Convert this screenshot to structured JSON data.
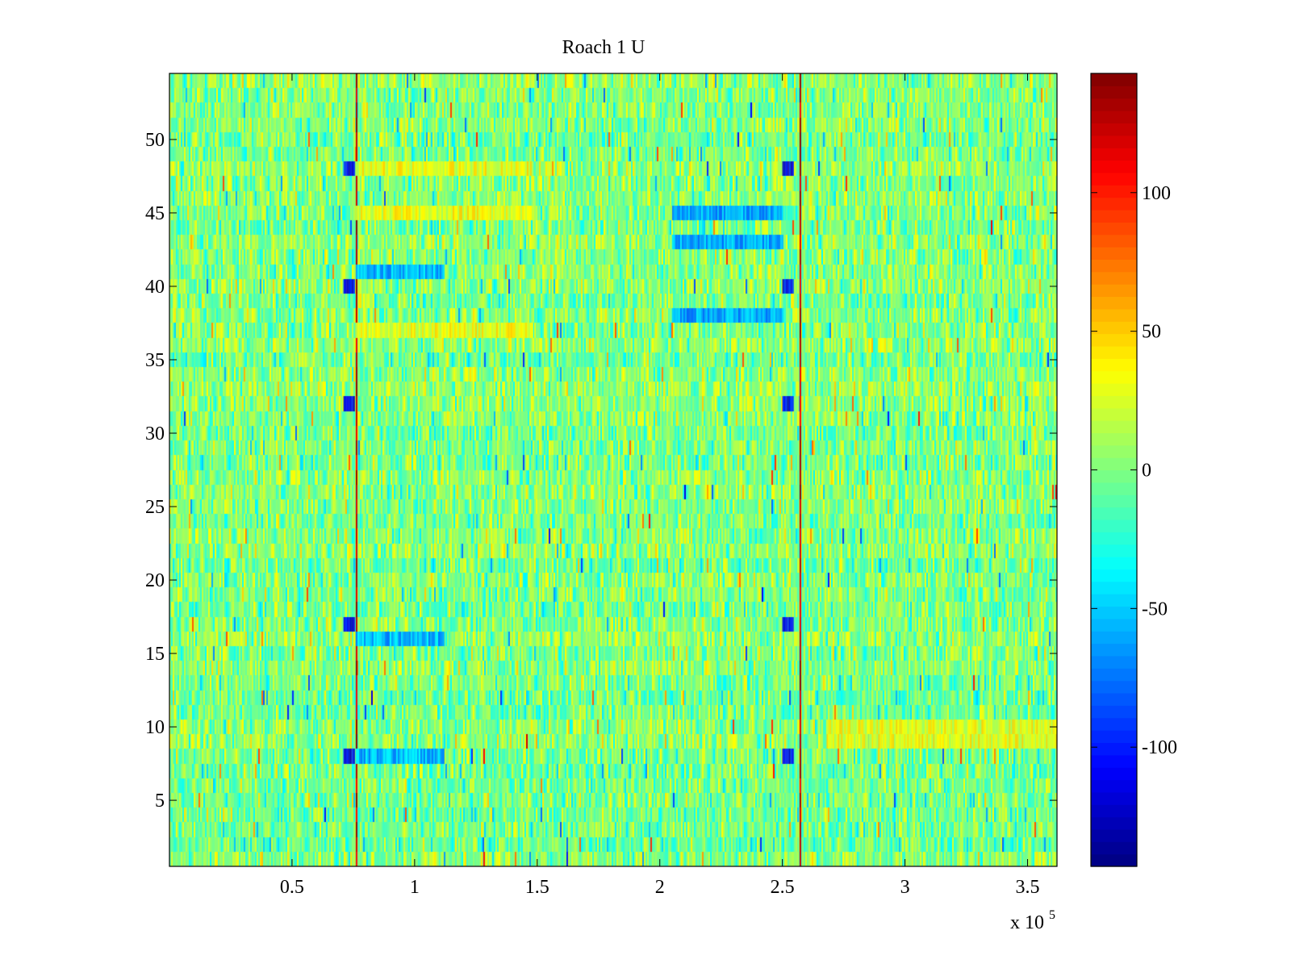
{
  "chart_data": {
    "type": "heatmap",
    "title": "Roach 1 U",
    "xlabel": "",
    "ylabel": "",
    "x_range": [
      0,
      362000
    ],
    "y_range": [
      0.5,
      54.5
    ],
    "rows": 54,
    "x_exponent_label": "x 10",
    "x_exponent_power": "5",
    "x_ticks": [
      {
        "value": 50000,
        "label": "0.5"
      },
      {
        "value": 100000,
        "label": "1"
      },
      {
        "value": 150000,
        "label": "1.5"
      },
      {
        "value": 200000,
        "label": "2"
      },
      {
        "value": 250000,
        "label": "2.5"
      },
      {
        "value": 300000,
        "label": "3"
      },
      {
        "value": 350000,
        "label": "3.5"
      }
    ],
    "y_ticks": [
      {
        "value": 5,
        "label": "5"
      },
      {
        "value": 10,
        "label": "10"
      },
      {
        "value": 15,
        "label": "15"
      },
      {
        "value": 20,
        "label": "20"
      },
      {
        "value": 25,
        "label": "25"
      },
      {
        "value": 30,
        "label": "30"
      },
      {
        "value": 35,
        "label": "35"
      },
      {
        "value": 40,
        "label": "40"
      },
      {
        "value": 45,
        "label": "45"
      },
      {
        "value": 50,
        "label": "50"
      }
    ],
    "colorbar": {
      "colormap": "jet",
      "range": [
        -143,
        143
      ],
      "ticks": [
        {
          "value": 100,
          "label": "100"
        },
        {
          "value": 50,
          "label": "50"
        },
        {
          "value": 0,
          "label": "0"
        },
        {
          "value": -50,
          "label": "-50"
        },
        {
          "value": -100,
          "label": "-100"
        }
      ]
    },
    "features": [
      {
        "kind": "spike-line",
        "x": 76000,
        "value": 140,
        "rows": "all"
      },
      {
        "kind": "spike-line",
        "x": 257000,
        "value": 140,
        "rows": "all"
      },
      {
        "kind": "spike-line",
        "x": 128000,
        "value": 130,
        "rows": [
          1,
          8
        ]
      },
      {
        "kind": "dip-band",
        "x_start": 71000,
        "x_end": 75000,
        "value": -110,
        "rows": [
          8,
          17,
          32,
          40,
          48
        ]
      },
      {
        "kind": "dip-band",
        "x_start": 250000,
        "x_end": 254000,
        "value": -110,
        "rows": [
          8,
          17,
          32,
          40,
          48
        ]
      },
      {
        "kind": "low-band",
        "x_start": 76000,
        "x_end": 112000,
        "value": -55,
        "rows": [
          8,
          16,
          41
        ]
      },
      {
        "kind": "low-band",
        "x_start": 205000,
        "x_end": 250000,
        "value": -60,
        "rows": [
          38,
          43,
          45
        ]
      },
      {
        "kind": "high-band",
        "x_start": 76000,
        "x_end": 148000,
        "value": 30,
        "rows": [
          37,
          45,
          48
        ]
      },
      {
        "kind": "high-band",
        "x_start": 268000,
        "x_end": 362000,
        "value": 30,
        "rows": [
          9,
          10
        ]
      }
    ],
    "background_value_range": [
      -40,
      40
    ]
  }
}
